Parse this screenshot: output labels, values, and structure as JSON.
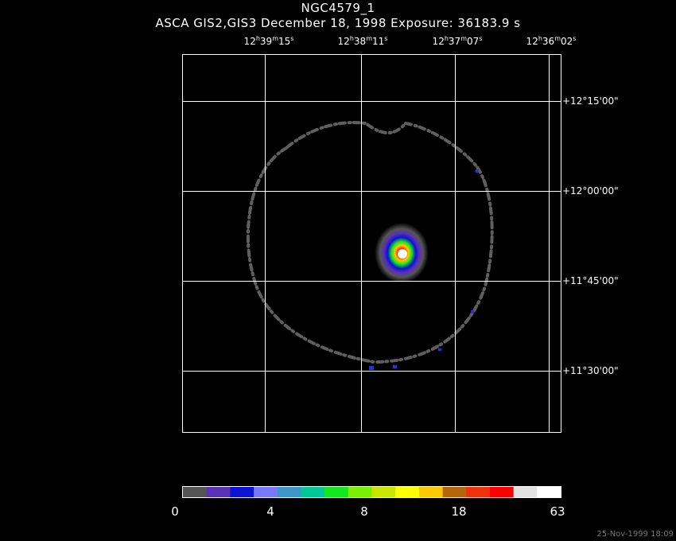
{
  "header": {
    "title": "NGC4579_1",
    "subtitle": "ASCA GIS2,GIS3 December 18, 1998 Exposure: 36183.9 s"
  },
  "ra_labels": [
    {
      "h": "12",
      "m": "39",
      "s": "15"
    },
    {
      "h": "12",
      "m": "38",
      "s": "11"
    },
    {
      "h": "12",
      "m": "37",
      "s": "07"
    },
    {
      "h": "12",
      "m": "36",
      "s": "02"
    }
  ],
  "dec_labels": [
    "+12°15'00\"",
    "+12°00'00\"",
    "+11°45'00\"",
    "+11°30'00\""
  ],
  "colorbar": {
    "colors": [
      "#555555",
      "#5a32b4",
      "#0a14d2",
      "#7878ff",
      "#3c96c8",
      "#00c896",
      "#14e61e",
      "#78f000",
      "#c8e600",
      "#ffff00",
      "#ffc800",
      "#b4640a",
      "#f0320a",
      "#ff0000",
      "#e1e1e1",
      "#ffffff"
    ],
    "tick_labels": [
      "0",
      "4",
      "8",
      "18",
      "63"
    ]
  },
  "timestamp": "25-Nov-1999 18:09"
}
